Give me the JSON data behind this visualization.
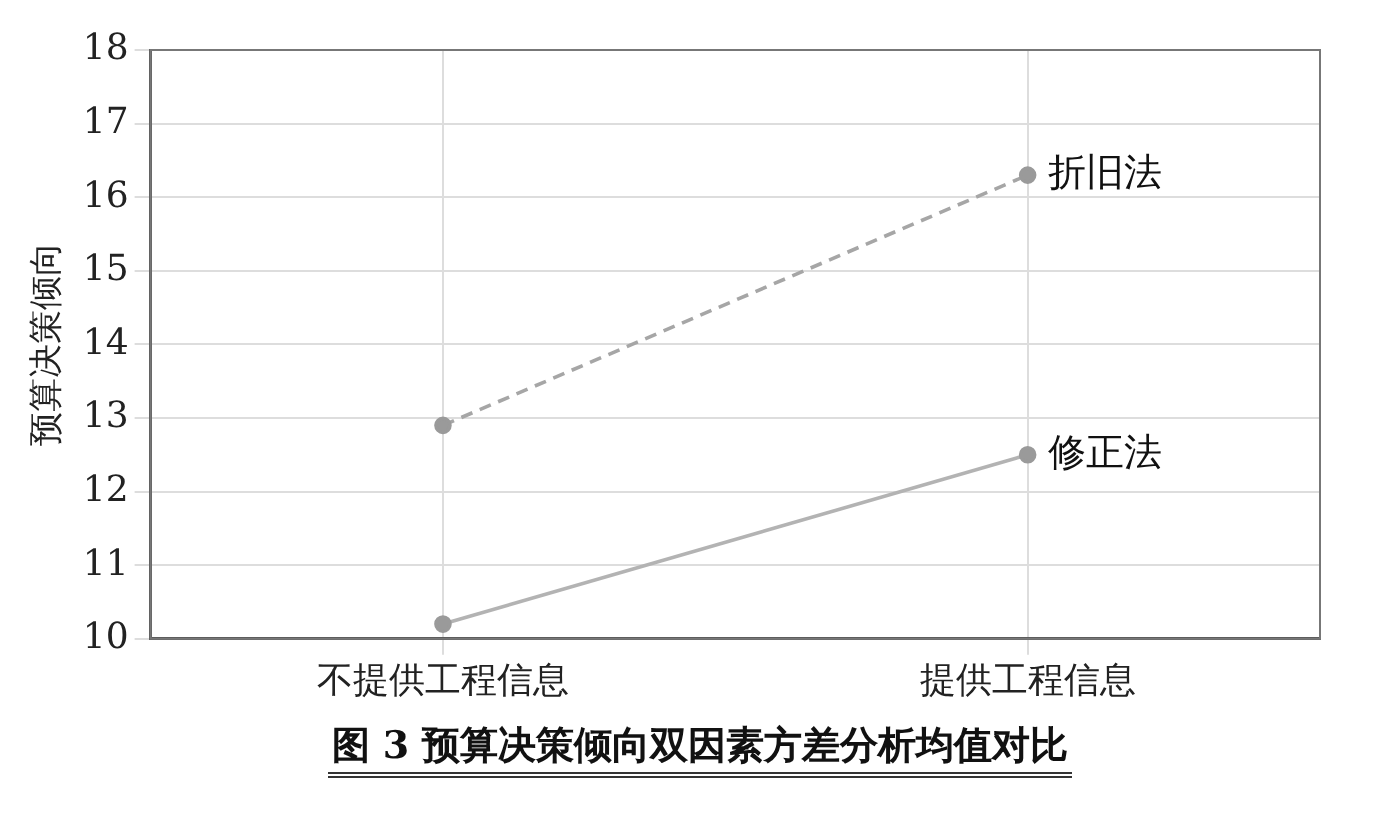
{
  "chart_data": {
    "type": "line",
    "title": "图 3  预算决策倾向双因素方差分析均值对比",
    "ylabel": "预算决策倾向",
    "categories": [
      "不提供工程信息",
      "提供工程信息"
    ],
    "series": [
      {
        "name": "折旧法",
        "color": "#a6a6a6",
        "values": [
          12.9,
          16.3
        ],
        "line_style": "dashed"
      },
      {
        "name": "修正法",
        "color": "#b3b3b3",
        "values": [
          10.2,
          12.5
        ],
        "line_style": "solid"
      }
    ],
    "ylim": [
      10,
      18
    ],
    "yticks": [
      10,
      11,
      12,
      13,
      14,
      15,
      16,
      17,
      18
    ],
    "grid": true,
    "legend": false,
    "marker": "circle"
  }
}
